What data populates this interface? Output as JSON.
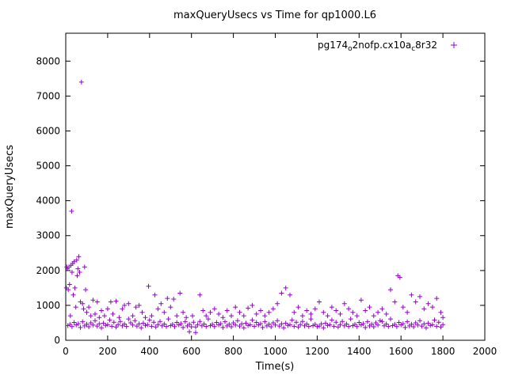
{
  "chart_data": {
    "type": "scatter",
    "title": "maxQueryUsecs vs Time for qp1000.L6",
    "xlabel": "Time(s)",
    "ylabel": "maxQueryUsecs",
    "xlim": [
      0,
      2000
    ],
    "ylim": [
      0,
      8800
    ],
    "x_ticks": [
      0,
      200,
      400,
      600,
      800,
      1000,
      1200,
      1400,
      1600,
      1800,
      2000
    ],
    "y_ticks": [
      0,
      1000,
      2000,
      3000,
      4000,
      5000,
      6000,
      7000,
      8000
    ],
    "grid": false,
    "legend_position": "top-right-inside",
    "marker": "plus",
    "marker_color": "#9400d3",
    "legend": {
      "segments": [
        {
          "t": "pg174",
          "sub": false
        },
        {
          "t": "o",
          "sub": true
        },
        {
          "t": "2nofp.cx10a",
          "sub": false
        },
        {
          "t": "c",
          "sub": true
        },
        {
          "t": "8r32",
          "sub": false
        }
      ]
    },
    "series_name": "pg174_o2nofp.cx10a_c8r32",
    "points": [
      [
        10,
        420
      ],
      [
        20,
        455
      ],
      [
        30,
        390
      ],
      [
        40,
        510
      ],
      [
        50,
        440
      ],
      [
        60,
        475
      ],
      [
        70,
        365
      ],
      [
        80,
        530
      ],
      [
        90,
        410
      ],
      [
        100,
        460
      ],
      [
        110,
        385
      ],
      [
        120,
        500
      ],
      [
        130,
        435
      ],
      [
        140,
        560
      ],
      [
        150,
        405
      ],
      [
        160,
        470
      ],
      [
        170,
        355
      ],
      [
        180,
        490
      ],
      [
        190,
        425
      ],
      [
        200,
        445
      ],
      [
        210,
        580
      ],
      [
        220,
        400
      ],
      [
        230,
        515
      ],
      [
        240,
        380
      ],
      [
        250,
        450
      ],
      [
        260,
        540
      ],
      [
        270,
        415
      ],
      [
        280,
        465
      ],
      [
        290,
        395
      ],
      [
        300,
        610
      ],
      [
        310,
        500
      ],
      [
        320,
        435
      ],
      [
        330,
        560
      ],
      [
        340,
        405
      ],
      [
        350,
        470
      ],
      [
        360,
        355
      ],
      [
        370,
        490
      ],
      [
        380,
        425
      ],
      [
        390,
        445
      ],
      [
        400,
        580
      ],
      [
        410,
        400
      ],
      [
        420,
        515
      ],
      [
        430,
        380
      ],
      [
        440,
        450
      ],
      [
        450,
        540
      ],
      [
        460,
        415
      ],
      [
        470,
        465
      ],
      [
        480,
        395
      ],
      [
        490,
        610
      ],
      [
        500,
        420
      ],
      [
        510,
        455
      ],
      [
        520,
        390
      ],
      [
        530,
        510
      ],
      [
        540,
        440
      ],
      [
        550,
        475
      ],
      [
        560,
        365
      ],
      [
        570,
        530
      ],
      [
        580,
        410
      ],
      [
        590,
        460
      ],
      [
        600,
        385
      ],
      [
        610,
        515
      ],
      [
        620,
        380
      ],
      [
        630,
        450
      ],
      [
        640,
        540
      ],
      [
        650,
        415
      ],
      [
        660,
        465
      ],
      [
        670,
        395
      ],
      [
        680,
        610
      ],
      [
        690,
        420
      ],
      [
        700,
        455
      ],
      [
        710,
        390
      ],
      [
        720,
        510
      ],
      [
        730,
        440
      ],
      [
        740,
        475
      ],
      [
        750,
        365
      ],
      [
        760,
        530
      ],
      [
        770,
        410
      ],
      [
        780,
        460
      ],
      [
        790,
        385
      ],
      [
        800,
        500
      ],
      [
        810,
        435
      ],
      [
        820,
        560
      ],
      [
        830,
        405
      ],
      [
        840,
        470
      ],
      [
        850,
        355
      ],
      [
        860,
        490
      ],
      [
        870,
        425
      ],
      [
        880,
        445
      ],
      [
        890,
        580
      ],
      [
        900,
        400
      ],
      [
        910,
        510
      ],
      [
        920,
        440
      ],
      [
        930,
        475
      ],
      [
        940,
        365
      ],
      [
        950,
        530
      ],
      [
        960,
        410
      ],
      [
        970,
        460
      ],
      [
        980,
        385
      ],
      [
        990,
        500
      ],
      [
        1000,
        435
      ],
      [
        1010,
        560
      ],
      [
        1020,
        405
      ],
      [
        1030,
        470
      ],
      [
        1040,
        355
      ],
      [
        1050,
        490
      ],
      [
        1060,
        425
      ],
      [
        1070,
        445
      ],
      [
        1080,
        580
      ],
      [
        1090,
        400
      ],
      [
        1100,
        515
      ],
      [
        1110,
        380
      ],
      [
        1120,
        450
      ],
      [
        1130,
        540
      ],
      [
        1140,
        415
      ],
      [
        1150,
        465
      ],
      [
        1160,
        395
      ],
      [
        1170,
        610
      ],
      [
        1180,
        420
      ],
      [
        1190,
        455
      ],
      [
        1200,
        390
      ],
      [
        1210,
        405
      ],
      [
        1220,
        470
      ],
      [
        1230,
        355
      ],
      [
        1240,
        490
      ],
      [
        1250,
        425
      ],
      [
        1260,
        445
      ],
      [
        1270,
        580
      ],
      [
        1280,
        400
      ],
      [
        1290,
        515
      ],
      [
        1300,
        380
      ],
      [
        1310,
        450
      ],
      [
        1320,
        540
      ],
      [
        1330,
        415
      ],
      [
        1340,
        465
      ],
      [
        1350,
        395
      ],
      [
        1360,
        610
      ],
      [
        1370,
        420
      ],
      [
        1380,
        455
      ],
      [
        1390,
        390
      ],
      [
        1400,
        510
      ],
      [
        1410,
        440
      ],
      [
        1420,
        475
      ],
      [
        1430,
        365
      ],
      [
        1440,
        530
      ],
      [
        1450,
        410
      ],
      [
        1460,
        460
      ],
      [
        1470,
        385
      ],
      [
        1480,
        500
      ],
      [
        1490,
        435
      ],
      [
        1500,
        560
      ],
      [
        1510,
        540
      ],
      [
        1520,
        415
      ],
      [
        1530,
        465
      ],
      [
        1540,
        395
      ],
      [
        1550,
        610
      ],
      [
        1560,
        420
      ],
      [
        1570,
        455
      ],
      [
        1580,
        390
      ],
      [
        1590,
        510
      ],
      [
        1600,
        440
      ],
      [
        1610,
        475
      ],
      [
        1620,
        365
      ],
      [
        1630,
        530
      ],
      [
        1640,
        410
      ],
      [
        1650,
        460
      ],
      [
        1660,
        385
      ],
      [
        1670,
        500
      ],
      [
        1680,
        435
      ],
      [
        1690,
        560
      ],
      [
        1700,
        405
      ],
      [
        1710,
        470
      ],
      [
        1720,
        355
      ],
      [
        1730,
        490
      ],
      [
        1740,
        425
      ],
      [
        1750,
        445
      ],
      [
        1760,
        580
      ],
      [
        1770,
        400
      ],
      [
        1780,
        515
      ],
      [
        1790,
        380
      ],
      [
        1800,
        450
      ],
      [
        3,
        1500
      ],
      [
        5,
        2100
      ],
      [
        8,
        2050
      ],
      [
        12,
        1450
      ],
      [
        15,
        2100
      ],
      [
        18,
        1600
      ],
      [
        22,
        700
      ],
      [
        25,
        2150
      ],
      [
        28,
        3700
      ],
      [
        30,
        1950
      ],
      [
        33,
        2200
      ],
      [
        36,
        1300
      ],
      [
        40,
        2250
      ],
      [
        44,
        1500
      ],
      [
        48,
        950
      ],
      [
        52,
        2300
      ],
      [
        55,
        1850
      ],
      [
        58,
        2050
      ],
      [
        62,
        2400
      ],
      [
        66,
        1950
      ],
      [
        70,
        1100
      ],
      [
        75,
        7400
      ],
      [
        80,
        1050
      ],
      [
        85,
        900
      ],
      [
        90,
        2100
      ],
      [
        95,
        1450
      ],
      [
        100,
        800
      ],
      [
        110,
        950
      ],
      [
        120,
        700
      ],
      [
        130,
        1150
      ],
      [
        140,
        750
      ],
      [
        150,
        1100
      ],
      [
        160,
        650
      ],
      [
        170,
        850
      ],
      [
        185,
        700
      ],
      [
        200,
        900
      ],
      [
        215,
        1100
      ],
      [
        225,
        750
      ],
      [
        240,
        1120
      ],
      [
        255,
        650
      ],
      [
        270,
        900
      ],
      [
        280,
        1000
      ],
      [
        300,
        1050
      ],
      [
        320,
        700
      ],
      [
        335,
        950
      ],
      [
        350,
        1000
      ],
      [
        365,
        800
      ],
      [
        380,
        650
      ],
      [
        395,
        1550
      ],
      [
        410,
        700
      ],
      [
        425,
        1300
      ],
      [
        440,
        900
      ],
      [
        455,
        1050
      ],
      [
        470,
        800
      ],
      [
        485,
        1200
      ],
      [
        500,
        950
      ],
      [
        515,
        1180
      ],
      [
        530,
        700
      ],
      [
        545,
        1350
      ],
      [
        560,
        800
      ],
      [
        575,
        650
      ],
      [
        590,
        246
      ],
      [
        605,
        700
      ],
      [
        620,
        220
      ],
      [
        640,
        1300
      ],
      [
        655,
        850
      ],
      [
        670,
        700
      ],
      [
        690,
        800
      ],
      [
        710,
        900
      ],
      [
        730,
        750
      ],
      [
        750,
        650
      ],
      [
        770,
        850
      ],
      [
        790,
        700
      ],
      [
        810,
        950
      ],
      [
        830,
        800
      ],
      [
        850,
        700
      ],
      [
        870,
        920
      ],
      [
        890,
        1000
      ],
      [
        910,
        750
      ],
      [
        930,
        850
      ],
      [
        950,
        700
      ],
      [
        970,
        800
      ],
      [
        990,
        900
      ],
      [
        1010,
        1050
      ],
      [
        1030,
        1350
      ],
      [
        1050,
        1500
      ],
      [
        1070,
        1300
      ],
      [
        1090,
        800
      ],
      [
        1110,
        950
      ],
      [
        1130,
        700
      ],
      [
        1150,
        850
      ],
      [
        1170,
        750
      ],
      [
        1190,
        900
      ],
      [
        1210,
        1100
      ],
      [
        1230,
        800
      ],
      [
        1250,
        700
      ],
      [
        1270,
        950
      ],
      [
        1290,
        850
      ],
      [
        1310,
        750
      ],
      [
        1330,
        1050
      ],
      [
        1350,
        900
      ],
      [
        1370,
        800
      ],
      [
        1390,
        700
      ],
      [
        1410,
        1150
      ],
      [
        1430,
        850
      ],
      [
        1450,
        950
      ],
      [
        1470,
        700
      ],
      [
        1490,
        800
      ],
      [
        1510,
        900
      ],
      [
        1530,
        750
      ],
      [
        1550,
        1450
      ],
      [
        1570,
        1100
      ],
      [
        1585,
        1850
      ],
      [
        1595,
        1800
      ],
      [
        1610,
        950
      ],
      [
        1630,
        800
      ],
      [
        1650,
        1300
      ],
      [
        1670,
        1100
      ],
      [
        1690,
        1250
      ],
      [
        1710,
        900
      ],
      [
        1730,
        1050
      ],
      [
        1750,
        950
      ],
      [
        1770,
        1200
      ],
      [
        1790,
        800
      ],
      [
        1800,
        650
      ]
    ]
  }
}
